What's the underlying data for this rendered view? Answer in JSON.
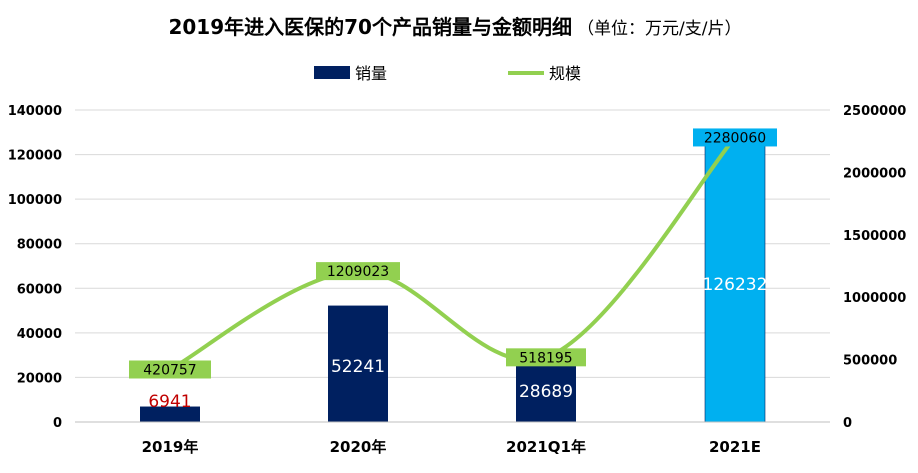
{
  "chart_data": {
    "type": "bar",
    "title": "2019年进入医保的70个产品销量与金额明细",
    "title_unit": "（单位：万元/支/片）",
    "categories": [
      "2019年",
      "2020年",
      "2021Q1年",
      "2021E"
    ],
    "series": [
      {
        "name": "销量",
        "type": "bar",
        "axis": "left",
        "values": [
          6941,
          52241,
          28689,
          126232
        ],
        "colors": [
          "#002060",
          "#002060",
          "#002060",
          "#00B0F0"
        ],
        "label_colors": [
          "#C00000",
          "#ffffff",
          "#ffffff",
          "#ffffff"
        ],
        "labels": [
          "6941",
          "52241",
          "28689",
          "126232"
        ]
      },
      {
        "name": "规模",
        "type": "line",
        "axis": "right",
        "values": [
          420757,
          1209023,
          518195,
          2280060
        ],
        "color": "#92D050",
        "labels": [
          "420757",
          "1209023",
          "518195",
          "2280060"
        ],
        "label_bg": [
          "#92D050",
          "#92D050",
          "#92D050",
          "#00B0F0"
        ]
      }
    ],
    "y_left": {
      "min": 0,
      "max": 140000,
      "ticks": [
        "0",
        "20000",
        "40000",
        "60000",
        "80000",
        "100000",
        "120000",
        "140000"
      ]
    },
    "y_right": {
      "min": 0,
      "max": 2500000,
      "ticks": [
        "0",
        "500000",
        "1000000",
        "1500000",
        "2000000",
        "2500000"
      ]
    },
    "grid": true,
    "legend_position": "top-center"
  }
}
